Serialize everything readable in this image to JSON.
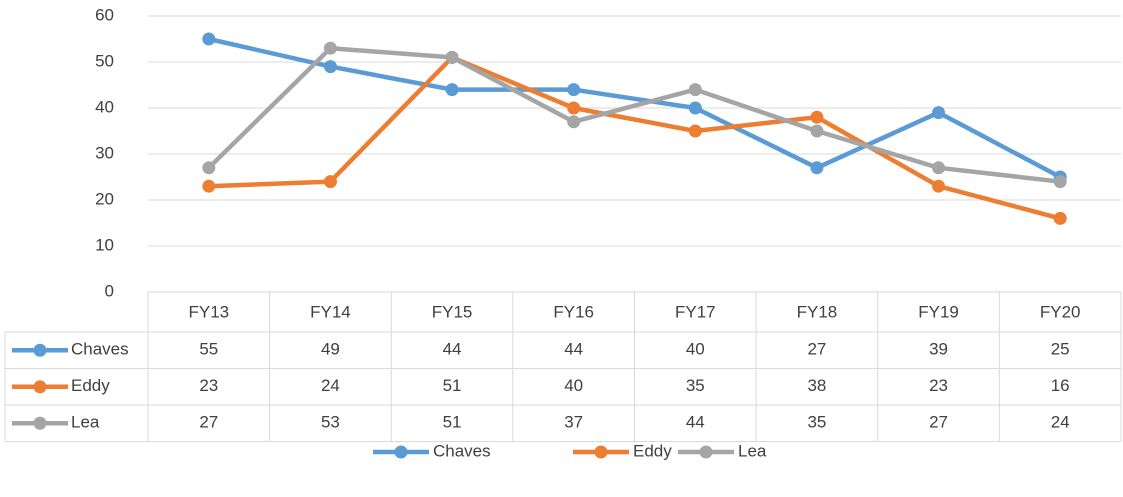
{
  "chart_data": {
    "type": "line",
    "categories": [
      "FY13",
      "FY14",
      "FY15",
      "FY16",
      "FY17",
      "FY18",
      "FY19",
      "FY20"
    ],
    "series": [
      {
        "name": "Chaves",
        "color": "#5b9bd5",
        "values": [
          55,
          49,
          44,
          44,
          40,
          27,
          39,
          25
        ]
      },
      {
        "name": "Eddy",
        "color": "#ed7d31",
        "values": [
          23,
          24,
          51,
          40,
          35,
          38,
          23,
          16
        ]
      },
      {
        "name": "Lea",
        "color": "#a5a5a5",
        "values": [
          27,
          53,
          51,
          37,
          44,
          35,
          27,
          24
        ]
      }
    ],
    "ylim": [
      0,
      60
    ],
    "yticks": [
      0,
      10,
      20,
      30,
      40,
      50,
      60
    ],
    "grid": true,
    "legend": "bottom",
    "data_table": true
  }
}
